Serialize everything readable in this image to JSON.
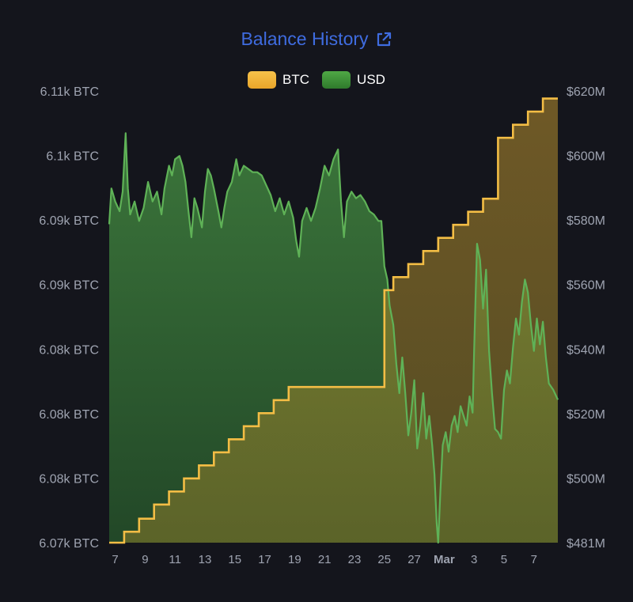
{
  "chart_data": {
    "type": "line",
    "title": "Balance History",
    "title_link_icon": "external-link-icon",
    "legend": [
      {
        "name": "BTC",
        "color": "#f0b030"
      },
      {
        "name": "USD",
        "color": "#3f9a3a"
      }
    ],
    "legend_position": "top-center",
    "grid": false,
    "y_left_ticks": [
      "6.11k BTC",
      "6.1k BTC",
      "6.09k BTC",
      "6.09k BTC",
      "6.08k BTC",
      "6.08k BTC",
      "6.08k BTC",
      "6.07k BTC"
    ],
    "y_right_ticks": [
      "$620M",
      "$600M",
      "$580M",
      "$560M",
      "$540M",
      "$520M",
      "$500M",
      "$481M"
    ],
    "x_ticks": [
      {
        "label": "7",
        "x": 1
      },
      {
        "label": "9",
        "x": 3
      },
      {
        "label": "11",
        "x": 5
      },
      {
        "label": "13",
        "x": 7
      },
      {
        "label": "15",
        "x": 9
      },
      {
        "label": "17",
        "x": 11
      },
      {
        "label": "19",
        "x": 13
      },
      {
        "label": "21",
        "x": 15
      },
      {
        "label": "23",
        "x": 17
      },
      {
        "label": "25",
        "x": 19
      },
      {
        "label": "27",
        "x": 21
      },
      {
        "label": "Mar",
        "x": 23,
        "bold": true
      },
      {
        "label": "3",
        "x": 25
      },
      {
        "label": "5",
        "x": 27
      },
      {
        "label": "7",
        "x": 29
      }
    ],
    "x_range": [
      0.6,
      30.6
    ],
    "btc_ylim": [
      6071.5,
      6113
    ],
    "usd_ylim": [
      481,
      620
    ],
    "series": [
      {
        "name": "BTC",
        "step": true,
        "points": [
          [
            0.6,
            6071.5
          ],
          [
            1.6,
            6072.5
          ],
          [
            2.6,
            6073.7
          ],
          [
            3.6,
            6075
          ],
          [
            4.6,
            6076.2
          ],
          [
            5.6,
            6077.4
          ],
          [
            6.6,
            6078.6
          ],
          [
            7.6,
            6079.8
          ],
          [
            8.6,
            6081
          ],
          [
            9.6,
            6082.2
          ],
          [
            10.6,
            6083.4
          ],
          [
            11.6,
            6084.6
          ],
          [
            12.6,
            6085.8
          ],
          [
            13.6,
            6085.8
          ],
          [
            14.6,
            6085.8
          ],
          [
            15.6,
            6085.8
          ],
          [
            16.6,
            6085.8
          ],
          [
            17.6,
            6085.8
          ],
          [
            18.6,
            6085.8
          ],
          [
            19.0,
            6094.7
          ],
          [
            19.6,
            6095.9
          ],
          [
            20.6,
            6097.1
          ],
          [
            21.6,
            6098.3
          ],
          [
            22.6,
            6099.5
          ],
          [
            23.6,
            6100.7
          ],
          [
            24.6,
            6101.9
          ],
          [
            25.6,
            6103.1
          ],
          [
            26.6,
            6108.7
          ],
          [
            27.6,
            6109.9
          ],
          [
            28.6,
            6111.1
          ],
          [
            29.6,
            6112.3
          ],
          [
            30.6,
            6112.3
          ]
        ]
      },
      {
        "name": "USD",
        "points": [
          [
            0.6,
            579
          ],
          [
            0.75,
            590
          ],
          [
            1.0,
            586
          ],
          [
            1.3,
            583
          ],
          [
            1.5,
            589
          ],
          [
            1.7,
            607
          ],
          [
            1.85,
            590
          ],
          [
            2.0,
            582
          ],
          [
            2.3,
            586
          ],
          [
            2.6,
            580
          ],
          [
            2.9,
            584
          ],
          [
            3.2,
            592
          ],
          [
            3.5,
            586
          ],
          [
            3.8,
            589
          ],
          [
            4.1,
            582
          ],
          [
            4.3,
            590
          ],
          [
            4.6,
            597
          ],
          [
            4.8,
            594
          ],
          [
            5.0,
            599
          ],
          [
            5.3,
            600
          ],
          [
            5.5,
            597
          ],
          [
            5.7,
            592
          ],
          [
            5.9,
            583
          ],
          [
            6.1,
            575
          ],
          [
            6.3,
            587
          ],
          [
            6.5,
            584
          ],
          [
            6.8,
            578
          ],
          [
            7.0,
            589
          ],
          [
            7.2,
            596
          ],
          [
            7.4,
            594
          ],
          [
            7.6,
            590
          ],
          [
            7.9,
            583
          ],
          [
            8.1,
            578
          ],
          [
            8.3,
            584
          ],
          [
            8.5,
            589
          ],
          [
            8.8,
            592
          ],
          [
            9.1,
            599
          ],
          [
            9.3,
            594
          ],
          [
            9.6,
            597
          ],
          [
            9.9,
            596
          ],
          [
            10.2,
            595
          ],
          [
            10.5,
            595
          ],
          [
            10.8,
            594
          ],
          [
            11.1,
            591
          ],
          [
            11.4,
            588
          ],
          [
            11.7,
            583
          ],
          [
            12.0,
            587
          ],
          [
            12.3,
            582
          ],
          [
            12.6,
            586
          ],
          [
            12.9,
            581
          ],
          [
            13.1,
            574
          ],
          [
            13.3,
            569
          ],
          [
            13.5,
            580
          ],
          [
            13.8,
            584
          ],
          [
            14.1,
            580
          ],
          [
            14.4,
            584
          ],
          [
            14.7,
            590
          ],
          [
            15.0,
            597
          ],
          [
            15.3,
            594
          ],
          [
            15.6,
            599
          ],
          [
            15.9,
            602
          ],
          [
            16.1,
            586
          ],
          [
            16.3,
            575
          ],
          [
            16.5,
            586
          ],
          [
            16.8,
            589
          ],
          [
            17.1,
            587
          ],
          [
            17.4,
            588
          ],
          [
            17.7,
            586
          ],
          [
            18.0,
            583
          ],
          [
            18.3,
            582
          ],
          [
            18.6,
            580
          ],
          [
            18.8,
            580
          ],
          [
            19.0,
            566
          ],
          [
            19.2,
            562
          ],
          [
            19.35,
            554
          ],
          [
            19.6,
            548
          ],
          [
            19.8,
            536
          ],
          [
            20.0,
            527
          ],
          [
            20.2,
            538
          ],
          [
            20.4,
            527
          ],
          [
            20.6,
            514
          ],
          [
            20.8,
            521
          ],
          [
            21.0,
            531
          ],
          [
            21.2,
            510
          ],
          [
            21.4,
            517
          ],
          [
            21.6,
            527
          ],
          [
            21.8,
            513
          ],
          [
            22.0,
            520
          ],
          [
            22.2,
            511
          ],
          [
            22.35,
            502
          ],
          [
            22.5,
            487
          ],
          [
            22.6,
            481
          ],
          [
            22.75,
            497
          ],
          [
            22.9,
            511
          ],
          [
            23.1,
            515
          ],
          [
            23.3,
            509
          ],
          [
            23.5,
            517
          ],
          [
            23.7,
            520
          ],
          [
            23.9,
            515
          ],
          [
            24.1,
            523
          ],
          [
            24.3,
            520
          ],
          [
            24.5,
            517
          ],
          [
            24.7,
            526
          ],
          [
            24.9,
            521
          ],
          [
            25.0,
            540
          ],
          [
            25.2,
            573
          ],
          [
            25.4,
            568
          ],
          [
            25.6,
            553
          ],
          [
            25.8,
            565
          ],
          [
            26.0,
            540
          ],
          [
            26.2,
            527
          ],
          [
            26.4,
            516
          ],
          [
            26.6,
            515
          ],
          [
            26.8,
            513
          ],
          [
            27.0,
            528
          ],
          [
            27.2,
            534
          ],
          [
            27.4,
            530
          ],
          [
            27.6,
            541
          ],
          [
            27.8,
            550
          ],
          [
            28.0,
            545
          ],
          [
            28.2,
            555
          ],
          [
            28.4,
            562
          ],
          [
            28.6,
            558
          ],
          [
            28.8,
            548
          ],
          [
            29.0,
            540
          ],
          [
            29.2,
            550
          ],
          [
            29.4,
            542
          ],
          [
            29.6,
            549
          ],
          [
            29.8,
            538
          ],
          [
            30.0,
            530
          ],
          [
            30.3,
            528
          ],
          [
            30.6,
            525
          ]
        ]
      }
    ]
  }
}
